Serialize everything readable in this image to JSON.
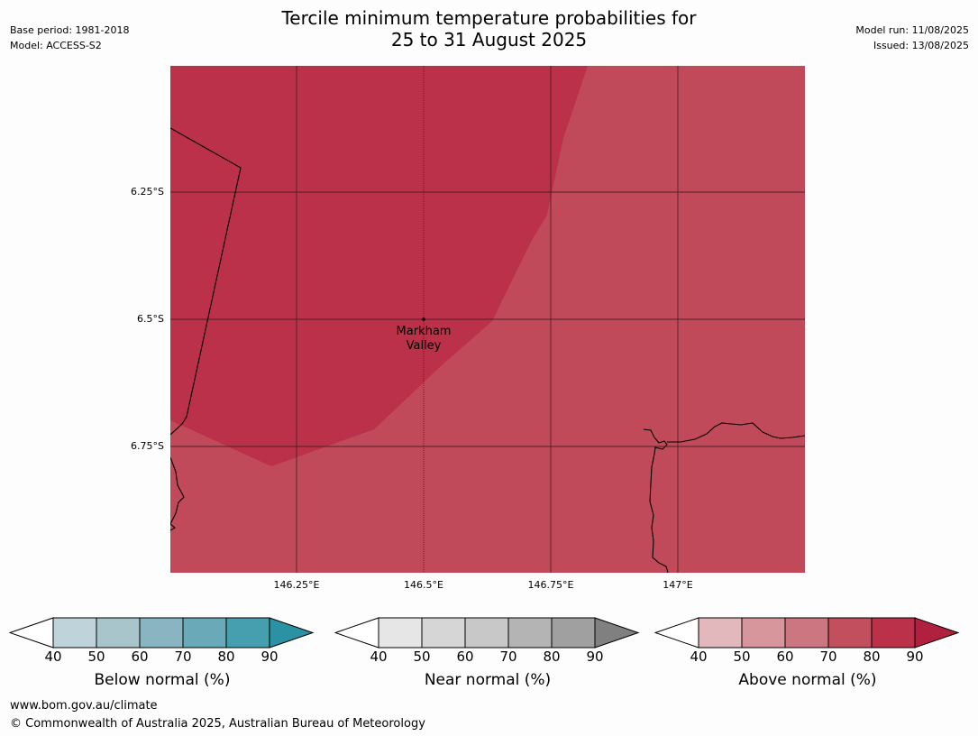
{
  "header": {
    "title_line1": "Tercile minimum temperature probabilities for",
    "title_line2": "25 to 31 August 2025",
    "base_period": "Base period: 1981-2018",
    "model": "Model: ACCESS-S2",
    "model_run": "Model run: 11/08/2025",
    "issued": "Issued: 13/08/2025"
  },
  "map": {
    "lat_labels": [
      "6.25°S",
      "6.5°S",
      "6.75°S"
    ],
    "lon_labels": [
      "146.25°E",
      "146.5°E",
      "146.75°E",
      "147°E"
    ],
    "place": {
      "name_line1": "Markham",
      "name_line2": "Valley"
    },
    "regions": [
      {
        "category": "Above normal",
        "band": "80-90",
        "color": "#bb3149"
      },
      {
        "category": "Above normal",
        "band": "70-80",
        "color": "#c04a59"
      }
    ]
  },
  "legends": [
    {
      "title": "Below normal (%)",
      "ticks": [
        "40",
        "50",
        "60",
        "70",
        "80",
        "90"
      ],
      "colors": [
        "#bed4da",
        "#a7c5cb",
        "#89b4c1",
        "#6aa9b8",
        "#469faf",
        "#2a92a3"
      ]
    },
    {
      "title": "Near normal (%)",
      "ticks": [
        "40",
        "50",
        "60",
        "70",
        "80",
        "90"
      ],
      "colors": [
        "#e6e6e6",
        "#d6d6d6",
        "#c8c8c8",
        "#b4b4b4",
        "#a0a0a0",
        "#808080"
      ]
    },
    {
      "title": "Above normal (%)",
      "ticks": [
        "40",
        "50",
        "60",
        "70",
        "80",
        "90"
      ],
      "colors": [
        "#e3b8bd",
        "#d7959c",
        "#cb7680",
        "#c14f5e",
        "#bb3149",
        "#b0203f"
      ]
    }
  ],
  "footer": {
    "url": "www.bom.gov.au/climate",
    "copyright": "© Commonwealth of Australia 2025, Australian Bureau of Meteorology"
  }
}
